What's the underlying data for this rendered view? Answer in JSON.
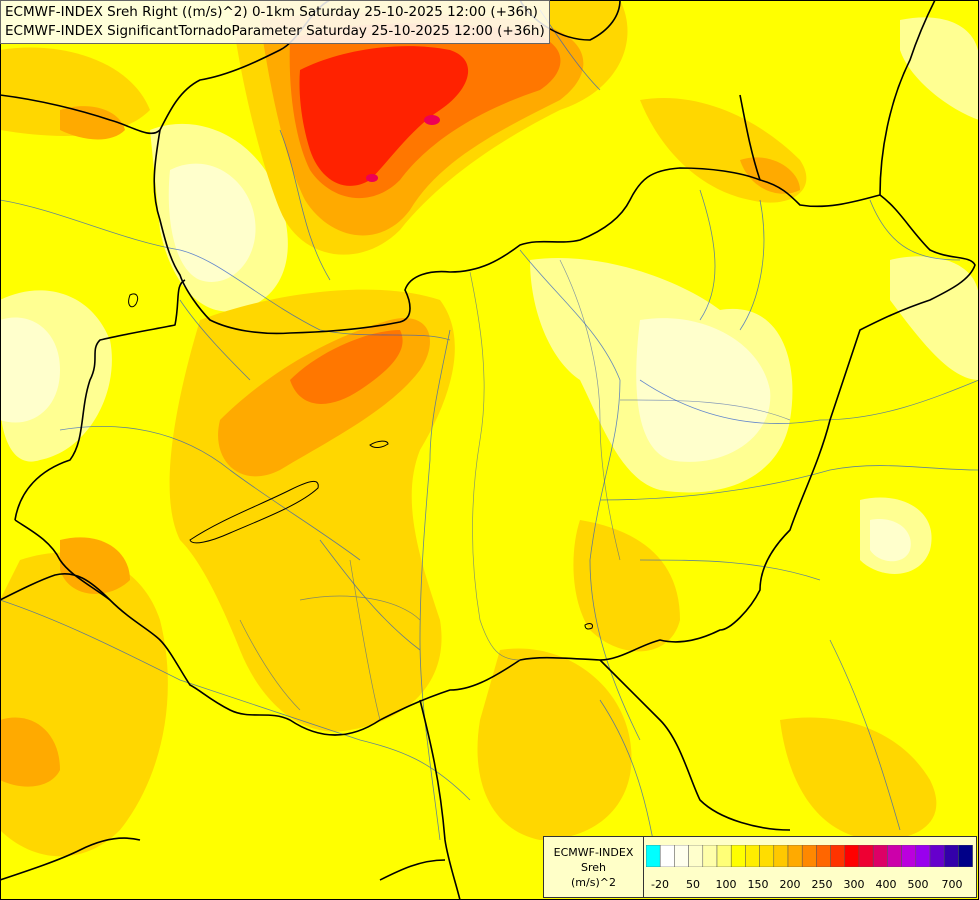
{
  "title": {
    "line1": "ECMWF-INDEX Sreh Right ((m/s)^2) 0-1km Saturday 25-10-2025 12:00 (+36h)",
    "line2": "ECMWF-INDEX SignificantTornadoParameter Saturday 25-10-2025 12:00 (+36h)"
  },
  "legend": {
    "source": "ECMWF-INDEX",
    "variable": "Sreh",
    "unit": "(m/s)^2",
    "colors": [
      "#00ffff",
      "#ffffff",
      "#ffffee",
      "#ffffcc",
      "#ffffaa",
      "#ffff77",
      "#ffff00",
      "#ffee00",
      "#ffdd00",
      "#ffc800",
      "#ffaa00",
      "#ff8800",
      "#ff6600",
      "#ff3300",
      "#ff0000",
      "#ee0033",
      "#dd0066",
      "#cc00aa",
      "#bb00dd",
      "#9900ee",
      "#6600cc",
      "#3300aa",
      "#000088"
    ],
    "ticks": [
      "-20",
      "50",
      "100",
      "150",
      "200",
      "250",
      "300",
      "400",
      "500",
      "700"
    ]
  }
}
